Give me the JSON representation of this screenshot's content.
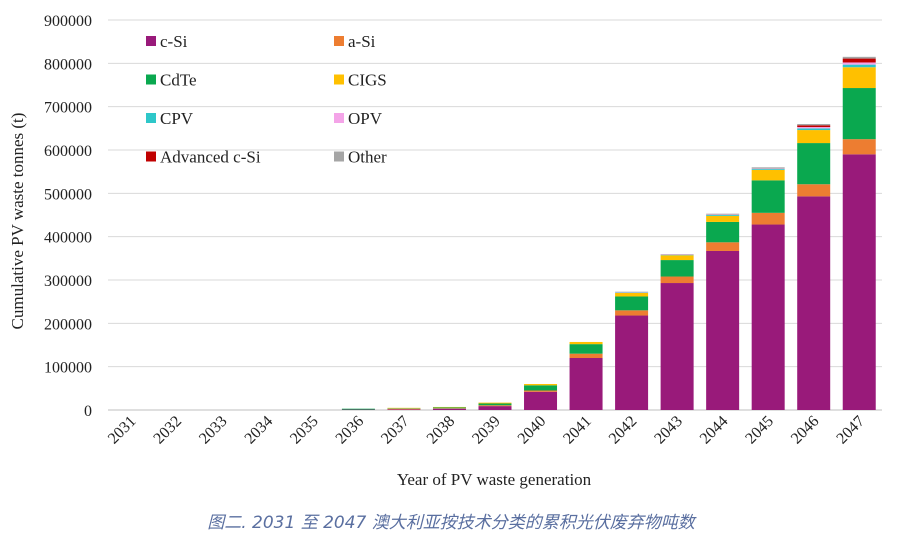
{
  "chart_data": {
    "type": "stacked-bar",
    "xlabel": "Year of PV waste generation",
    "ylabel": "Cumulative PV waste tonnes (t)",
    "ylim": [
      0,
      900000
    ],
    "yticks": [
      0,
      100000,
      200000,
      300000,
      400000,
      500000,
      600000,
      700000,
      800000,
      900000
    ],
    "legend_position": "top-left",
    "categories": [
      "2031",
      "2032",
      "2033",
      "2034",
      "2035",
      "2036",
      "2037",
      "2038",
      "2039",
      "2040",
      "2041",
      "2042",
      "2043",
      "2044",
      "2045",
      "2046",
      "2047"
    ],
    "series": [
      {
        "name": "c-Si",
        "color": "#991a7a",
        "values": [
          0,
          0,
          0,
          0,
          0,
          1000,
          1500,
          3000,
          9000,
          42000,
          120000,
          218000,
          293000,
          367000,
          428000,
          493000,
          590000
        ]
      },
      {
        "name": "a-Si",
        "color": "#ed7d31",
        "values": [
          0,
          0,
          0,
          0,
          0,
          0,
          1500,
          1000,
          2000,
          3000,
          10000,
          12000,
          15000,
          20000,
          27000,
          28000,
          35000
        ]
      },
      {
        "name": "CdTe",
        "color": "#0aa84f",
        "values": [
          0,
          0,
          0,
          0,
          0,
          2000,
          1000,
          2000,
          4000,
          12000,
          22000,
          32000,
          38000,
          47000,
          75000,
          95000,
          118000
        ]
      },
      {
        "name": "CIGS",
        "color": "#ffc000",
        "values": [
          0,
          0,
          0,
          0,
          0,
          0,
          1000,
          1000,
          2000,
          3000,
          5000,
          8000,
          11000,
          14000,
          24000,
          30000,
          48000
        ]
      },
      {
        "name": "CPV",
        "color": "#2ec7c9",
        "values": [
          0,
          0,
          0,
          0,
          0,
          0,
          0,
          0,
          0,
          0,
          0,
          1000,
          1000,
          2000,
          2000,
          4000,
          6000
        ]
      },
      {
        "name": "OPV",
        "color": "#f4a4e8",
        "values": [
          0,
          0,
          0,
          0,
          0,
          0,
          0,
          0,
          0,
          0,
          0,
          1000,
          1000,
          1000,
          1000,
          3000,
          5000
        ]
      },
      {
        "name": "Advanced c-Si",
        "color": "#c00000",
        "values": [
          0,
          0,
          0,
          0,
          0,
          0,
          0,
          0,
          0,
          0,
          0,
          0,
          0,
          0,
          0,
          4000,
          9000
        ]
      },
      {
        "name": "Other",
        "color": "#a5a5a5",
        "values": [
          0,
          0,
          0,
          0,
          0,
          0,
          0,
          0,
          0,
          0,
          0,
          1000,
          1000,
          2000,
          3000,
          3000,
          4000
        ]
      }
    ]
  },
  "caption": "图二. 2031 至 2047 澳大利亚按技术分类的累积光伏废弃物吨数"
}
